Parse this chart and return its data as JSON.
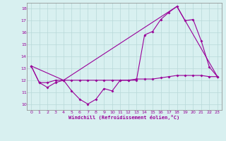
{
  "title": "",
  "xlabel": "Windchill (Refroidissement éolien,°C)",
  "background_color": "#d8f0f0",
  "grid_color": "#b8d8d8",
  "line_color": "#990099",
  "spine_color": "#888888",
  "xlim": [
    -0.5,
    23.5
  ],
  "ylim": [
    9.5,
    18.5
  ],
  "yticks": [
    10,
    11,
    12,
    13,
    14,
    15,
    16,
    17,
    18
  ],
  "xticks": [
    0,
    1,
    2,
    3,
    4,
    5,
    6,
    7,
    8,
    9,
    10,
    11,
    12,
    13,
    14,
    15,
    16,
    17,
    18,
    19,
    20,
    21,
    22,
    23
  ],
  "series1_x": [
    0,
    1,
    2,
    3,
    4,
    5,
    6,
    7,
    8,
    9,
    10,
    11,
    12,
    13,
    14,
    15,
    16,
    17,
    18,
    19,
    20,
    21,
    22,
    23
  ],
  "series1_y": [
    13.2,
    11.8,
    11.4,
    11.8,
    12.0,
    11.1,
    10.4,
    10.0,
    10.4,
    11.3,
    11.1,
    12.0,
    12.0,
    12.0,
    15.8,
    16.1,
    17.1,
    17.7,
    18.2,
    17.0,
    17.1,
    15.3,
    13.1,
    12.3
  ],
  "series2_x": [
    0,
    1,
    2,
    3,
    4,
    5,
    6,
    7,
    8,
    9,
    10,
    11,
    12,
    13,
    14,
    15,
    16,
    17,
    18,
    19,
    20,
    21,
    22,
    23
  ],
  "series2_y": [
    13.2,
    11.8,
    11.8,
    12.0,
    12.0,
    12.0,
    12.0,
    12.0,
    12.0,
    12.0,
    12.0,
    12.0,
    12.0,
    12.1,
    12.1,
    12.1,
    12.2,
    12.3,
    12.4,
    12.4,
    12.4,
    12.4,
    12.3,
    12.3
  ],
  "series3_x": [
    0,
    4,
    18,
    23
  ],
  "series3_y": [
    13.2,
    12.0,
    18.2,
    12.3
  ]
}
